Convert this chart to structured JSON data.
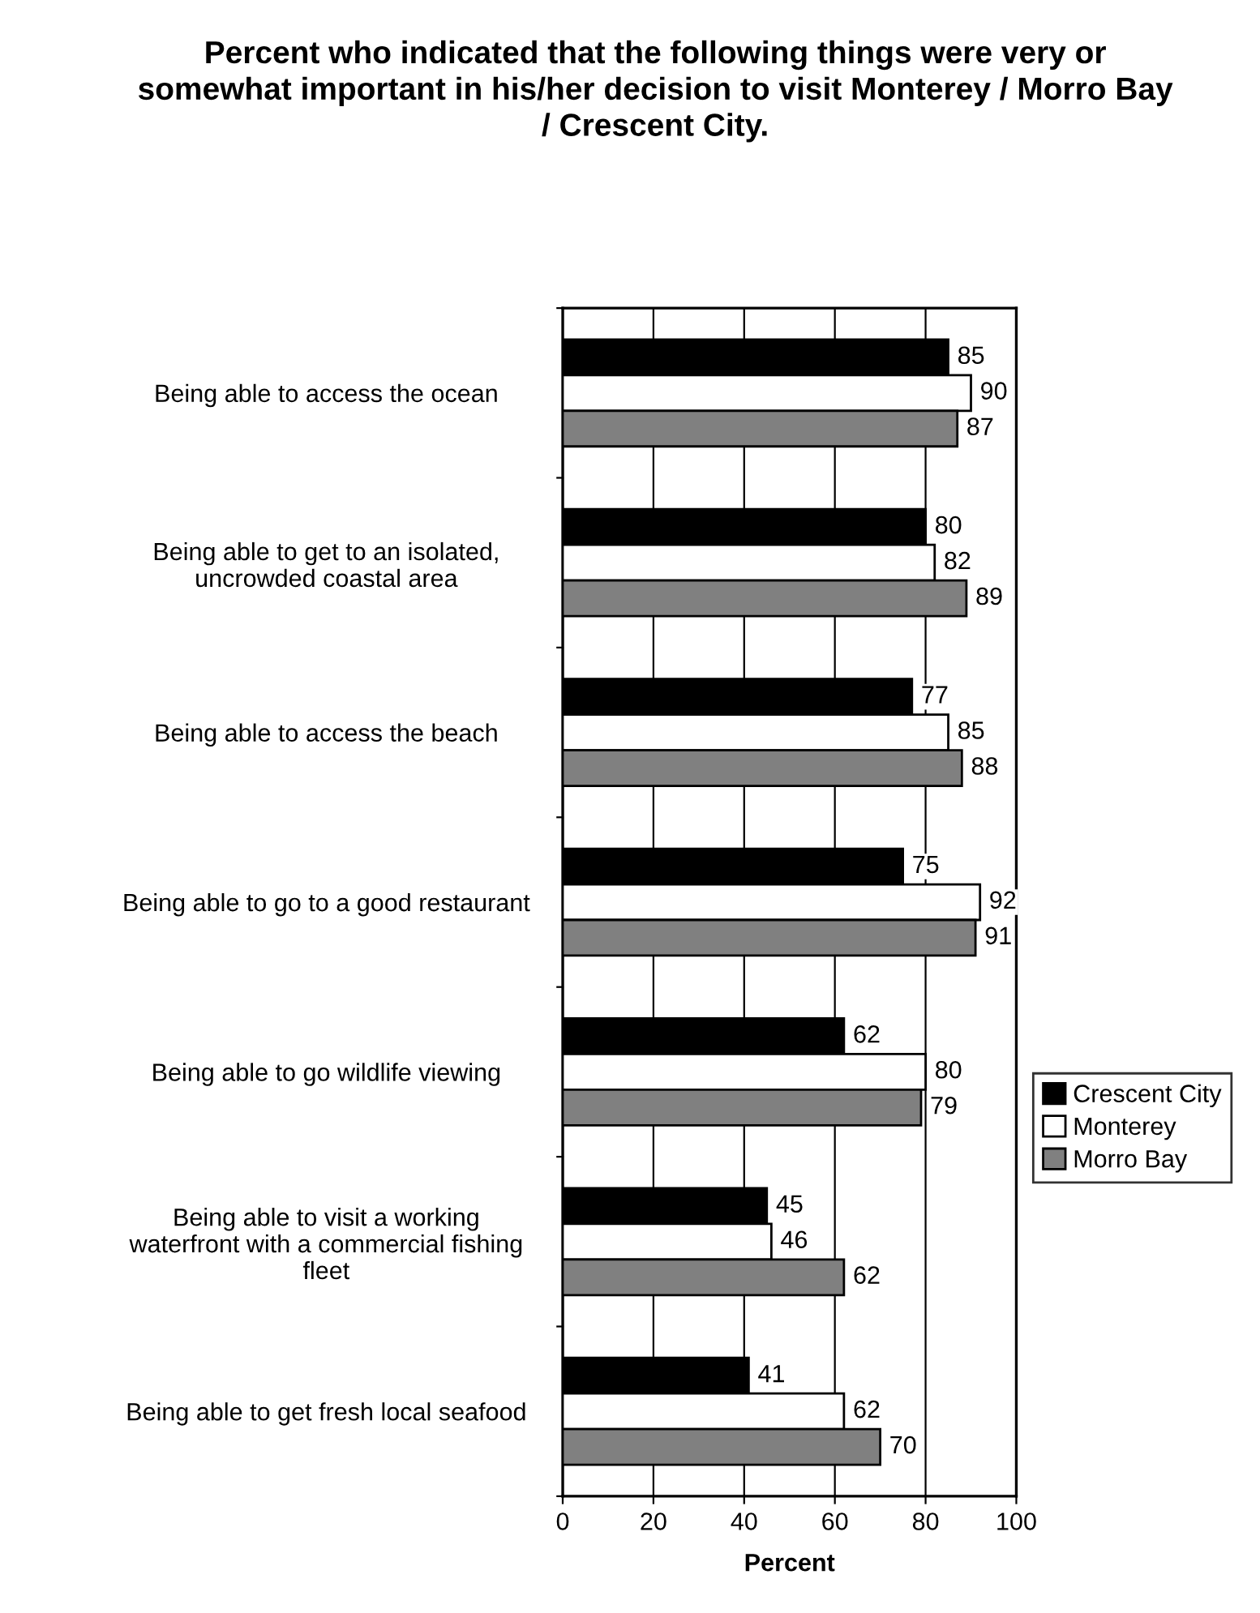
{
  "chart_data": {
    "type": "bar",
    "orientation": "horizontal",
    "title": "Percent who indicated that the following things were very or somewhat important in his/her decision to visit Monterey / Morro Bay / Crescent City.",
    "xlabel": "Percent",
    "categories": [
      "Being able to access the ocean",
      "Being able to get to an isolated,\nuncrowded coastal area",
      "Being able to access the beach",
      "Being able to go to a good restaurant",
      "Being able to go wildlife viewing",
      "Being able to visit a working\nwaterfront with a commercial fishing\nfleet",
      "Being able to get fresh local seafood"
    ],
    "series": [
      {
        "name": "Crescent City",
        "color": "#000000",
        "values": [
          85,
          80,
          77,
          75,
          62,
          45,
          41
        ]
      },
      {
        "name": "Monterey",
        "color": "#ffffff",
        "values": [
          90,
          82,
          85,
          92,
          80,
          46,
          62
        ]
      },
      {
        "name": "Morro Bay",
        "color": "#808080",
        "values": [
          87,
          89,
          88,
          91,
          79,
          62,
          70
        ]
      }
    ],
    "xlim": [
      0,
      100
    ],
    "xticks": [
      0,
      20,
      40,
      60,
      80,
      100
    ],
    "grid": "x",
    "legend": "right",
    "data_labels": true
  }
}
